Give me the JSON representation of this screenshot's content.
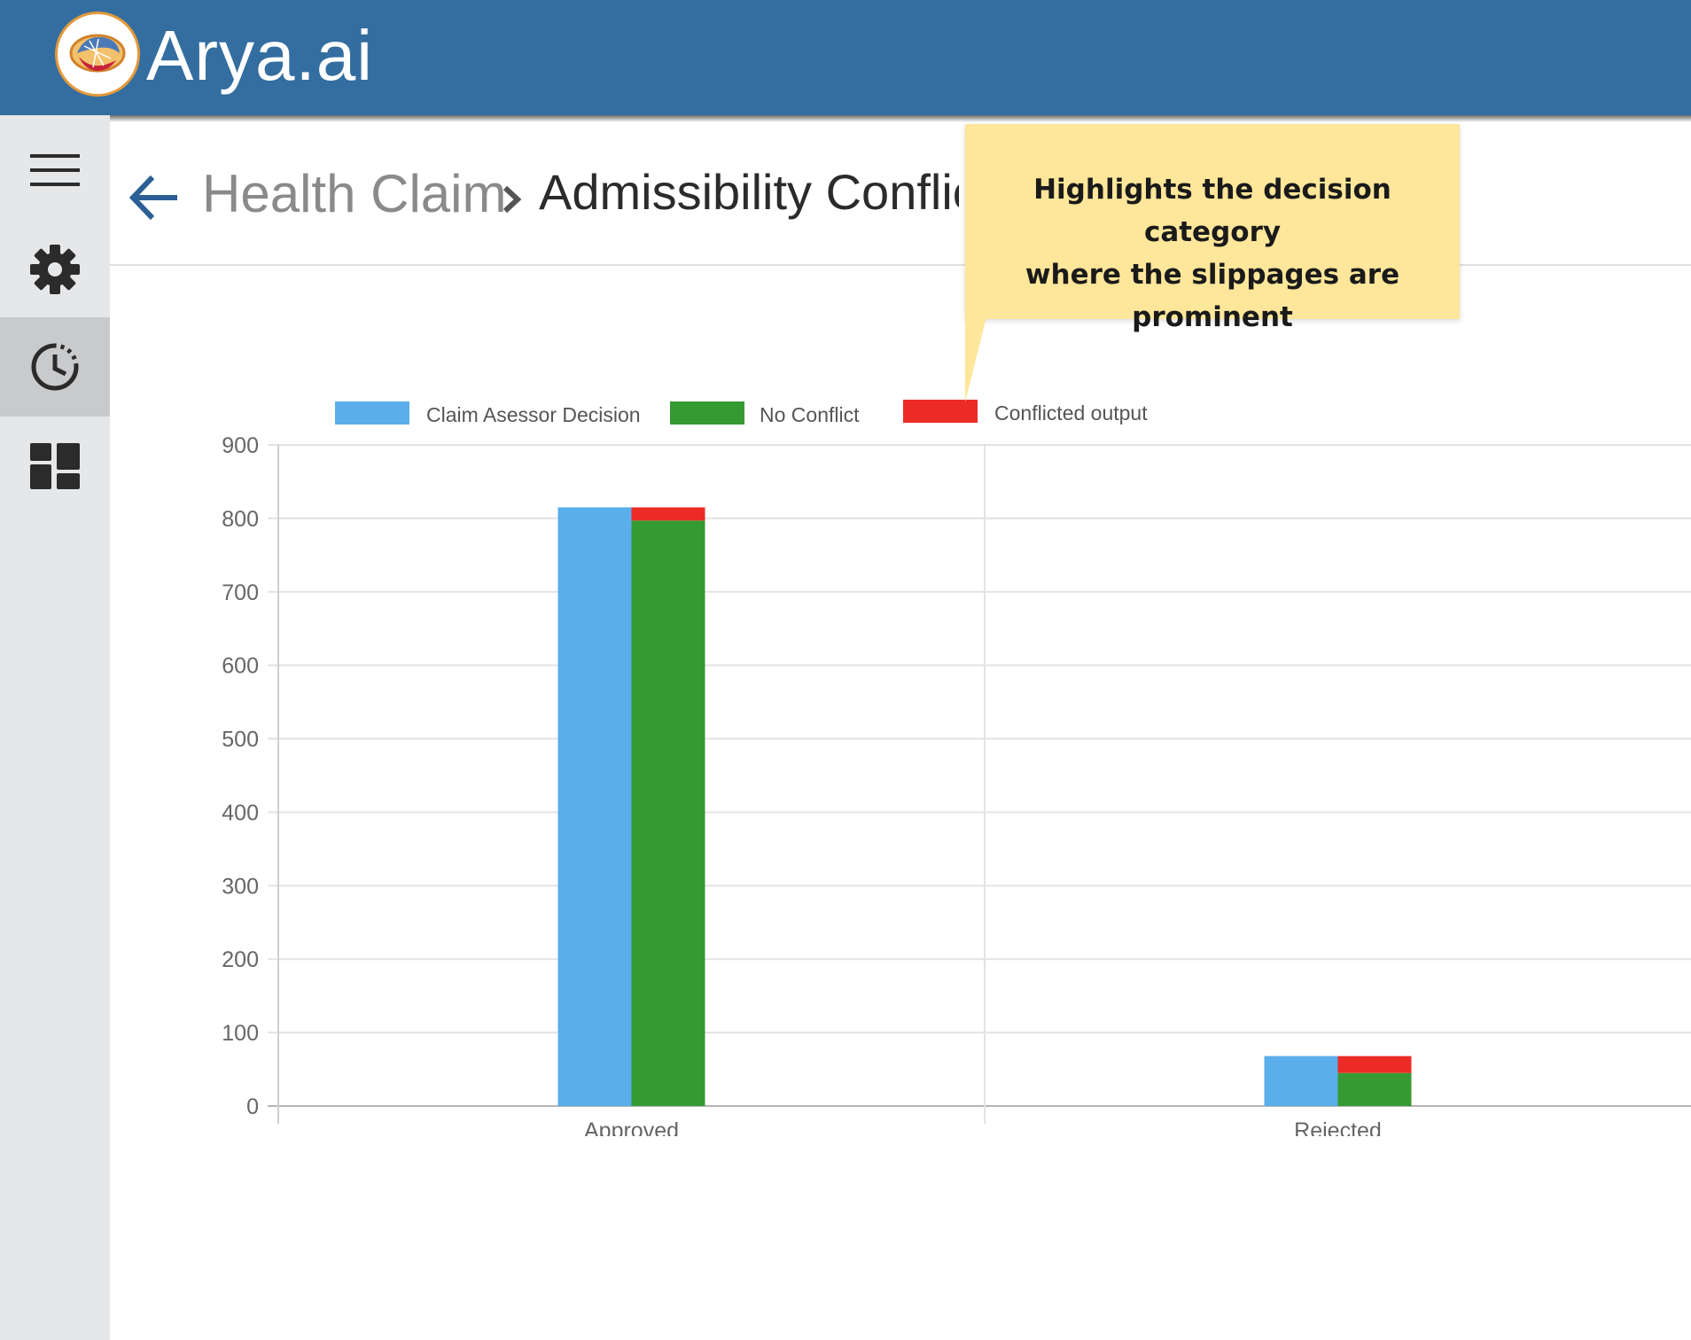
{
  "app": {
    "brand": "Arya.ai"
  },
  "sidebar": {
    "items": [
      {
        "icon": "hamburger-icon"
      },
      {
        "icon": "gear-icon"
      },
      {
        "icon": "history-icon",
        "active": true
      },
      {
        "icon": "dashboard-icon"
      }
    ]
  },
  "breadcrumb": {
    "parent": "Health Claim",
    "current": "Admissibility Conflicts"
  },
  "tooltip": {
    "text": "Highlights the decision category\nwhere the slippages are prominent"
  },
  "chart_data": {
    "type": "bar",
    "categories": [
      "Approved",
      "Rejected"
    ],
    "series": [
      {
        "name": "Claim Asessor Decision",
        "color": "#5aaeea",
        "values": [
          815,
          68
        ]
      },
      {
        "name": "No Conflict",
        "color": "#359a32",
        "values": [
          797,
          45
        ],
        "stack": "output"
      },
      {
        "name": "Conflicted output",
        "color": "#ed2b26",
        "values": [
          18,
          23
        ],
        "stack": "output"
      }
    ],
    "ylim": [
      0,
      900
    ],
    "yticks": [
      0,
      100,
      200,
      300,
      400,
      500,
      600,
      700,
      800,
      900
    ],
    "grid": true,
    "legend_position": "top"
  }
}
